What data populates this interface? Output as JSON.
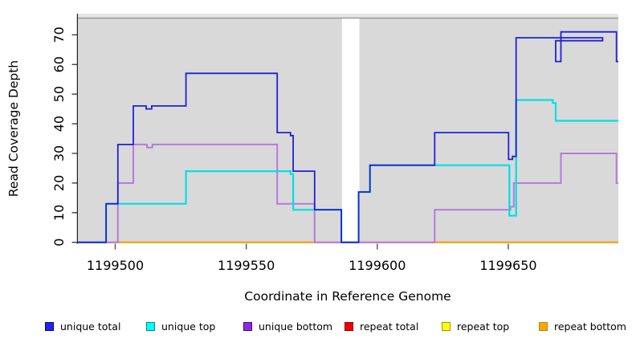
{
  "figure": {
    "x_axis_title": "Coordinate in Reference Genome",
    "y_axis_title": "Read Coverage Depth"
  },
  "chart_data": {
    "type": "line",
    "subtype": "step-coverage-plot",
    "title": "",
    "xlabel": "Coordinate in Reference Genome",
    "ylabel": "Read Coverage Depth",
    "x_range": [
      1199485.75,
      1199692
    ],
    "ylim": [
      0,
      77
    ],
    "x_ticks": [
      1199500,
      1199550,
      1199600,
      1199650
    ],
    "y_ticks": [
      0,
      10,
      20,
      30,
      40,
      50,
      60,
      70
    ],
    "grid": "off",
    "panel_bg": "#d9d9d9",
    "top_strip": {
      "fill": "#e6e6e6",
      "divider_color": "#9a9a9a"
    },
    "gap_band": {
      "from": 1199586.5,
      "to": 1199593.2,
      "color": "#ffffff"
    },
    "legend_position": "bottom",
    "series": [
      {
        "name": "repeat total",
        "color": "#dd0000",
        "width": 1.6,
        "points": [
          [
            1199485.75,
            0
          ]
        ]
      },
      {
        "name": "repeat top",
        "color": "#ffff00",
        "width": 1.6,
        "points": [
          [
            1199485.75,
            0
          ]
        ]
      },
      {
        "name": "repeat bottom",
        "color": "#ff9d00",
        "width": 1.9,
        "points": [
          [
            1199485.75,
            0
          ]
        ]
      },
      {
        "name": "unique bottom",
        "color": "#b57bdc",
        "width": 2.0,
        "points": [
          [
            1199485.75,
            0
          ],
          [
            1199501,
            20
          ],
          [
            1199506.9,
            33
          ],
          [
            1199512.1,
            32
          ],
          [
            1199514.2,
            33
          ],
          [
            1199561.8,
            13
          ],
          [
            1199576.1,
            0
          ],
          [
            1199621.9,
            11
          ],
          [
            1199650.8,
            12
          ],
          [
            1199652.1,
            20
          ],
          [
            1199670.1,
            30
          ],
          [
            1199691.3,
            20
          ]
        ]
      },
      {
        "name": "unique top",
        "color": "#00e0e8",
        "width": 2.2,
        "points": [
          [
            1199485.75,
            0
          ],
          [
            1199496.5,
            13
          ],
          [
            1199527,
            24
          ],
          [
            1199566.9,
            23
          ],
          [
            1199567.9,
            11
          ],
          [
            1199586.3,
            0
          ],
          [
            1199592.9,
            17
          ],
          [
            1199597.2,
            26
          ],
          [
            1199650.4,
            9
          ],
          [
            1199653,
            48
          ],
          [
            1199667,
            47
          ],
          [
            1199668.1,
            41
          ]
        ]
      },
      {
        "name": "unique total",
        "color": "#2121d2",
        "width": 1.8,
        "points": [
          [
            1199485.75,
            0
          ],
          [
            1199496.5,
            13
          ],
          [
            1199501,
            33
          ],
          [
            1199506.9,
            46
          ],
          [
            1199511.8,
            45
          ],
          [
            1199513.9,
            46
          ],
          [
            1199527,
            57
          ],
          [
            1199561.8,
            37
          ],
          [
            1199566.9,
            36
          ],
          [
            1199567.9,
            24
          ],
          [
            1199576.1,
            11
          ],
          [
            1199586.3,
            0
          ],
          [
            1199592.9,
            17
          ],
          [
            1199597.2,
            26
          ],
          [
            1199621.9,
            37
          ],
          [
            1199650.1,
            28
          ],
          [
            1199651.6,
            29
          ],
          [
            1199653,
            69
          ],
          [
            1199686,
            68
          ],
          [
            1199691.3,
            61
          ],
          [
            1199698,
            61
          ]
        ]
      }
    ],
    "series_note": "points are [genome_coordinate, depth] step breakpoints (step-after); unique total jumps to 69 at 1199653, dips 68@1199686, 61@1199691.3, rises 71@1199698.7... see overrides",
    "unique_total_right": [
      [
        1199691.3,
        61
      ],
      [
        1199698.7,
        71
      ],
      [
        1199691.3,
        61
      ]
    ],
    "legend": [
      {
        "label": "unique total",
        "fill": "#2222ee",
        "border": "#00008b"
      },
      {
        "label": "unique top",
        "fill": "#00ffff",
        "border": "#008b8b"
      },
      {
        "label": "unique bottom",
        "fill": "#8b2be2",
        "border": "#4b0082"
      },
      {
        "label": "repeat total",
        "fill": "#ee0000",
        "border": "#8b0000"
      },
      {
        "label": "repeat top",
        "fill": "#ffff00",
        "border": "#999900"
      },
      {
        "label": "repeat bottom",
        "fill": "#ffa500",
        "border": "#b8860b"
      }
    ]
  }
}
